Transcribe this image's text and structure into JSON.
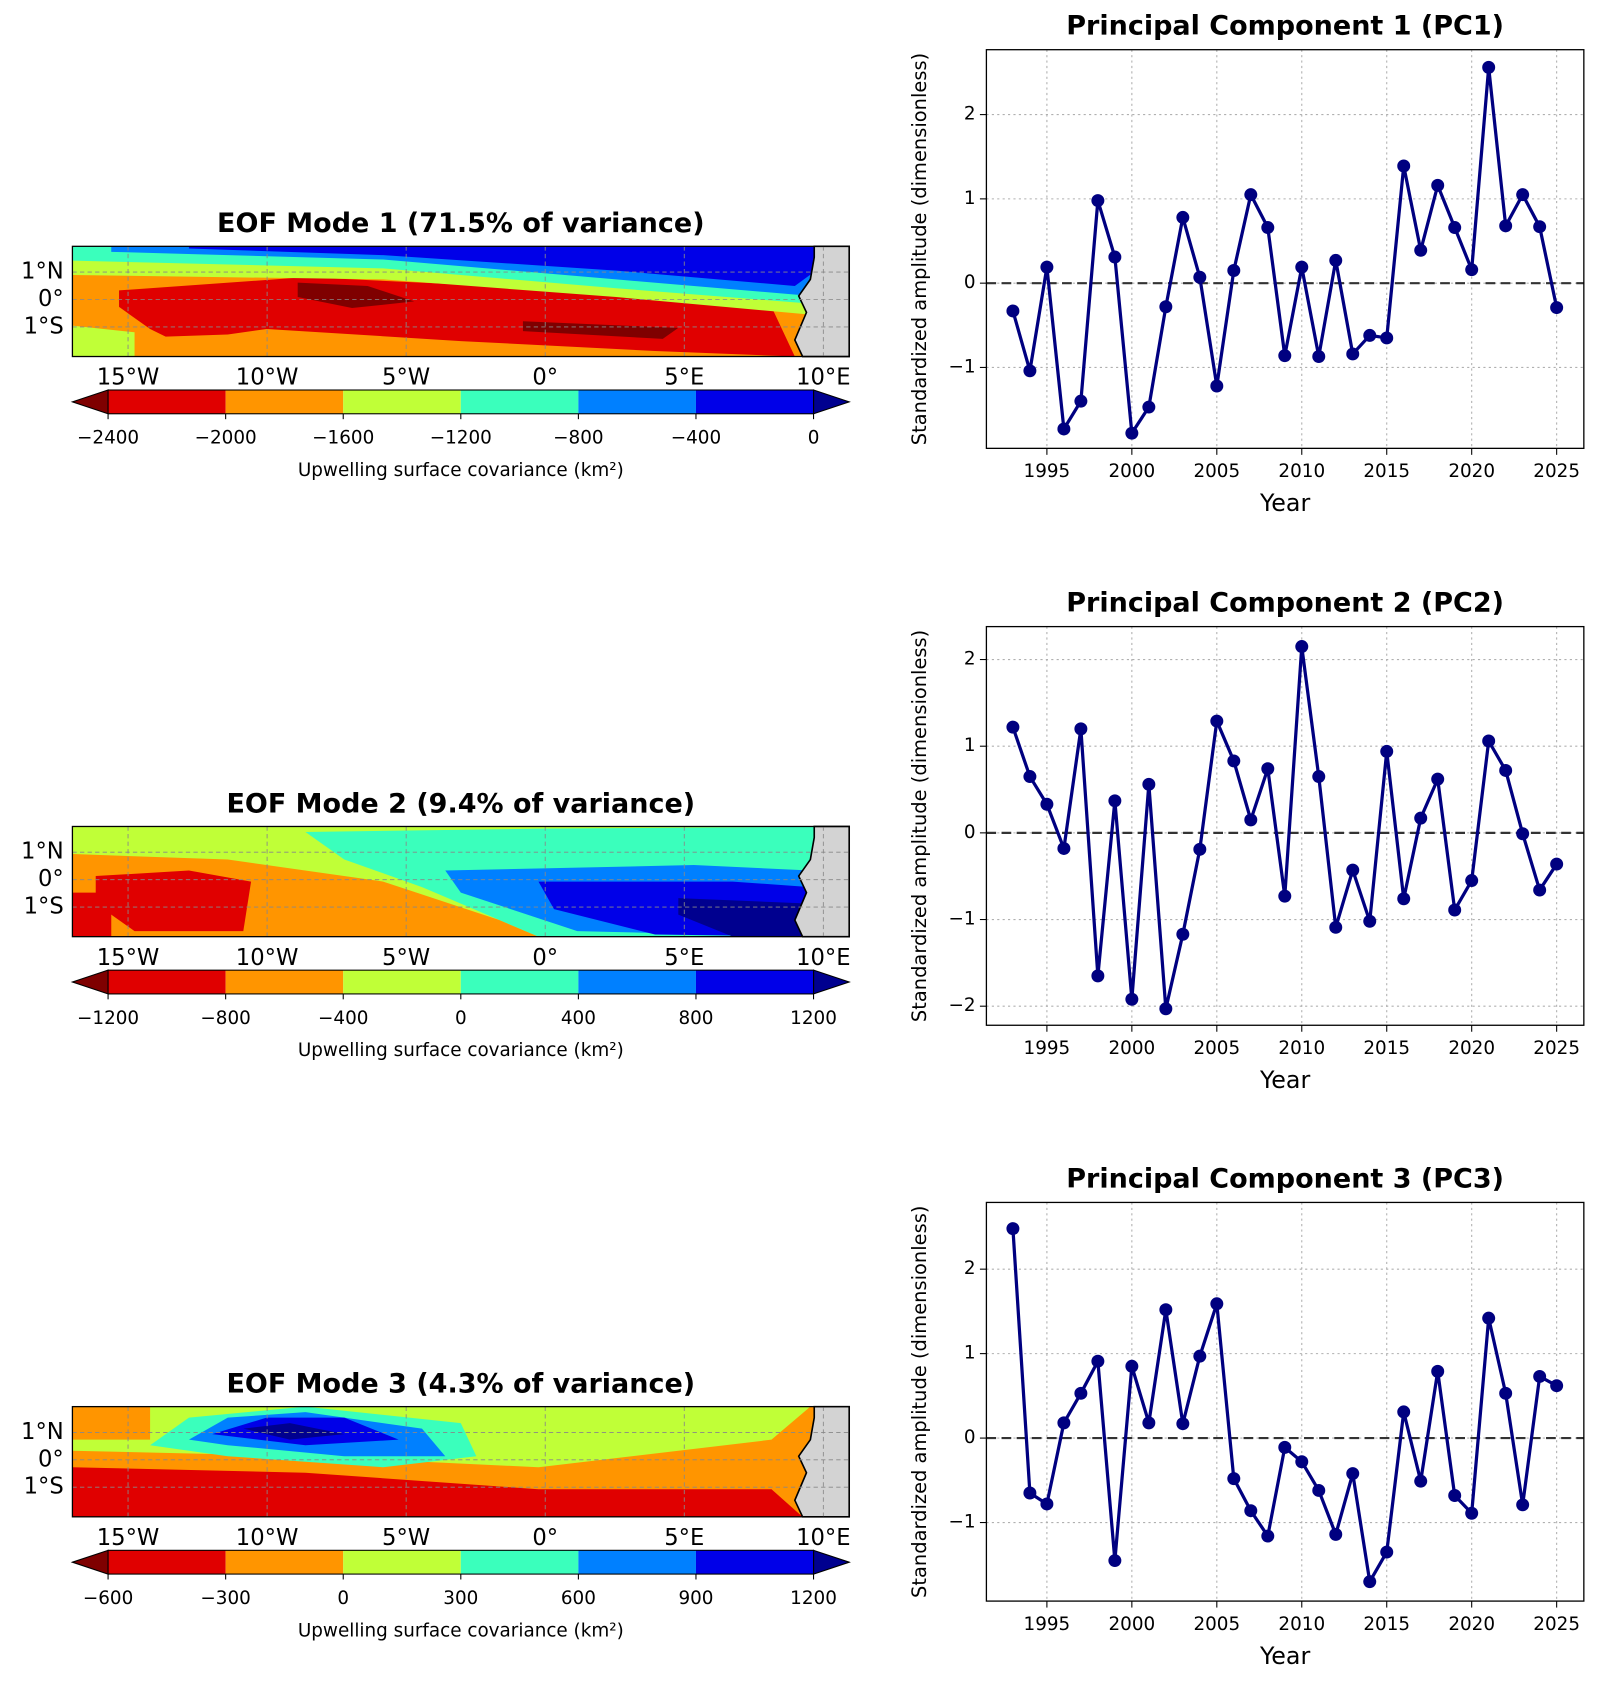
{
  "chart_data": [
    {
      "type": "map",
      "title": "EOF Mode 1 (71.5% of variance)",
      "xlim": [
        -17.0,
        10.93
      ],
      "ylim": [
        -2.08,
        1.94
      ],
      "xticks": [
        {
          "value": -15,
          "label": "15°W"
        },
        {
          "value": -10,
          "label": "10°W"
        },
        {
          "value": -5,
          "label": "5°W"
        },
        {
          "value": 0,
          "label": "0°"
        },
        {
          "value": 5,
          "label": "5°E"
        },
        {
          "value": 10,
          "label": "10°E"
        }
      ],
      "yticks": [
        {
          "value": 1,
          "label": "1°N"
        },
        {
          "value": 0,
          "label": "0°"
        },
        {
          "value": -1,
          "label": "1°S"
        }
      ],
      "colorbar": {
        "label": "Upwelling surface covariance (km²)",
        "ticks": [
          {
            "value": -2400,
            "label": "−2400"
          },
          {
            "value": -2000,
            "label": "−2000"
          },
          {
            "value": -1600,
            "label": "−1600"
          },
          {
            "value": -1200,
            "label": "−1200"
          },
          {
            "value": -800,
            "label": "−800"
          },
          {
            "value": -400,
            "label": "−400"
          },
          0
        ],
        "colors": [
          "#7f0000",
          "#e00000",
          "#ff9500",
          "#c0ff37",
          "#3affbc",
          "#0080ff",
          "#0000e8",
          "#00008f"
        ]
      }
    },
    {
      "type": "line",
      "title": "Principal Component 1 (PC1)",
      "xlabel": "Year",
      "ylabel": "Standardized amplitude (dimensionless)",
      "x": [
        1993,
        1994,
        1995,
        1996,
        1997,
        1998,
        1999,
        2000,
        2001,
        2002,
        2003,
        2004,
        2005,
        2006,
        2007,
        2008,
        2009,
        2010,
        2011,
        2012,
        2013,
        2014,
        2015,
        2016,
        2017,
        2018,
        2019,
        2020,
        2021,
        2022,
        2023,
        2024,
        2025
      ],
      "values": [
        -0.33,
        -1.04,
        0.19,
        -1.73,
        -1.4,
        0.98,
        0.31,
        -1.78,
        -1.47,
        -0.28,
        0.78,
        0.07,
        -1.22,
        0.15,
        1.05,
        0.66,
        -0.86,
        0.19,
        -0.87,
        0.27,
        -0.84,
        -0.62,
        -0.65,
        1.39,
        0.39,
        1.16,
        0.66,
        0.16,
        2.56,
        0.68,
        1.05,
        0.67,
        -0.29
      ],
      "color": "#000080",
      "reference_line": 0,
      "grid": true,
      "xlim": [
        1991.44,
        2026.6
      ],
      "ylim": [
        -1.96,
        2.77
      ],
      "xticks": [
        1995,
        2000,
        2005,
        2010,
        2015,
        2020,
        2025
      ],
      "yticks": [
        {
          "value": -1,
          "label": "−1"
        },
        0,
        1,
        2
      ]
    },
    {
      "type": "map",
      "title": "EOF Mode 2 (9.4% of variance)",
      "xlim": [
        -17.0,
        10.93
      ],
      "ylim": [
        -2.08,
        1.94
      ],
      "xticks": [
        {
          "value": -15,
          "label": "15°W"
        },
        {
          "value": -10,
          "label": "10°W"
        },
        {
          "value": -5,
          "label": "5°W"
        },
        {
          "value": 0,
          "label": "0°"
        },
        {
          "value": 5,
          "label": "5°E"
        },
        {
          "value": 10,
          "label": "10°E"
        }
      ],
      "yticks": [
        {
          "value": 1,
          "label": "1°N"
        },
        {
          "value": 0,
          "label": "0°"
        },
        {
          "value": -1,
          "label": "1°S"
        }
      ],
      "colorbar": {
        "label": "Upwelling surface covariance (km²)",
        "ticks": [
          {
            "value": -1200,
            "label": "−1200"
          },
          {
            "value": -800,
            "label": "−800"
          },
          {
            "value": -400,
            "label": "−400"
          },
          0,
          400,
          800,
          1200
        ],
        "colors": [
          "#7f0000",
          "#e00000",
          "#ff9500",
          "#c0ff37",
          "#3affbc",
          "#0080ff",
          "#0000e8",
          "#00008f"
        ]
      }
    },
    {
      "type": "line",
      "title": "Principal Component 2 (PC2)",
      "xlabel": "Year",
      "ylabel": "Standardized amplitude (dimensionless)",
      "x": [
        1993,
        1994,
        1995,
        1996,
        1997,
        1998,
        1999,
        2000,
        2001,
        2002,
        2003,
        2004,
        2005,
        2006,
        2007,
        2008,
        2009,
        2010,
        2011,
        2012,
        2013,
        2014,
        2015,
        2016,
        2017,
        2018,
        2019,
        2020,
        2021,
        2022,
        2023,
        2024,
        2025
      ],
      "values": [
        1.22,
        0.65,
        0.33,
        -0.18,
        1.2,
        -1.65,
        0.37,
        -1.92,
        0.56,
        -2.03,
        -1.17,
        -0.19,
        1.29,
        0.83,
        0.15,
        0.74,
        -0.73,
        2.15,
        0.65,
        -1.09,
        -0.43,
        -1.02,
        0.94,
        -0.76,
        0.17,
        0.62,
        -0.89,
        -0.55,
        1.06,
        0.72,
        -0.01,
        -0.66,
        -0.36
      ],
      "color": "#000080",
      "reference_line": 0,
      "grid": true,
      "xlim": [
        1991.44,
        2026.6
      ],
      "ylim": [
        -2.22,
        2.38
      ],
      "xticks": [
        1995,
        2000,
        2005,
        2010,
        2015,
        2020,
        2025
      ],
      "yticks": [
        {
          "value": -2,
          "label": "−2"
        },
        {
          "value": -1,
          "label": "−1"
        },
        0,
        1,
        2
      ]
    },
    {
      "type": "map",
      "title": "EOF Mode 3 (4.3% of variance)",
      "xlim": [
        -17.0,
        10.93
      ],
      "ylim": [
        -2.08,
        1.94
      ],
      "xticks": [
        {
          "value": -15,
          "label": "15°W"
        },
        {
          "value": -10,
          "label": "10°W"
        },
        {
          "value": -5,
          "label": "5°W"
        },
        {
          "value": 0,
          "label": "0°"
        },
        {
          "value": 5,
          "label": "5°E"
        },
        {
          "value": 10,
          "label": "10°E"
        }
      ],
      "yticks": [
        {
          "value": 1,
          "label": "1°N"
        },
        {
          "value": 0,
          "label": "0°"
        },
        {
          "value": -1,
          "label": "1°S"
        }
      ],
      "colorbar": {
        "label": "Upwelling surface covariance (km²)",
        "ticks": [
          {
            "value": -600,
            "label": "−600"
          },
          {
            "value": -300,
            "label": "−300"
          },
          0,
          300,
          600,
          900,
          1200
        ],
        "colors": [
          "#7f0000",
          "#e00000",
          "#ff9500",
          "#c0ff37",
          "#3affbc",
          "#0080ff",
          "#0000e8",
          "#00008f"
        ]
      }
    },
    {
      "type": "line",
      "title": "Principal Component 3 (PC3)",
      "xlabel": "Year",
      "ylabel": "Standardized amplitude (dimensionless)",
      "x": [
        1993,
        1994,
        1995,
        1996,
        1997,
        1998,
        1999,
        2000,
        2001,
        2002,
        2003,
        2004,
        2005,
        2006,
        2007,
        2008,
        2009,
        2010,
        2011,
        2012,
        2013,
        2014,
        2015,
        2016,
        2017,
        2018,
        2019,
        2020,
        2021,
        2022,
        2023,
        2024,
        2025
      ],
      "values": [
        2.48,
        -0.65,
        -0.78,
        0.18,
        0.53,
        0.91,
        -1.45,
        0.85,
        0.18,
        1.52,
        0.17,
        0.97,
        1.59,
        -0.48,
        -0.86,
        -1.16,
        -0.11,
        -0.28,
        -0.62,
        -1.14,
        -0.42,
        -1.7,
        -1.35,
        0.31,
        -0.51,
        0.79,
        -0.68,
        -0.89,
        1.42,
        0.53,
        -0.79,
        0.73,
        0.62
      ],
      "color": "#000080",
      "reference_line": 0,
      "grid": true,
      "xlim": [
        1991.44,
        2026.6
      ],
      "ylim": [
        -1.93,
        2.79
      ],
      "xticks": [
        1995,
        2000,
        2005,
        2010,
        2015,
        2020,
        2025
      ],
      "yticks": [
        {
          "value": -1,
          "label": "−1"
        },
        0,
        1,
        2
      ]
    }
  ]
}
